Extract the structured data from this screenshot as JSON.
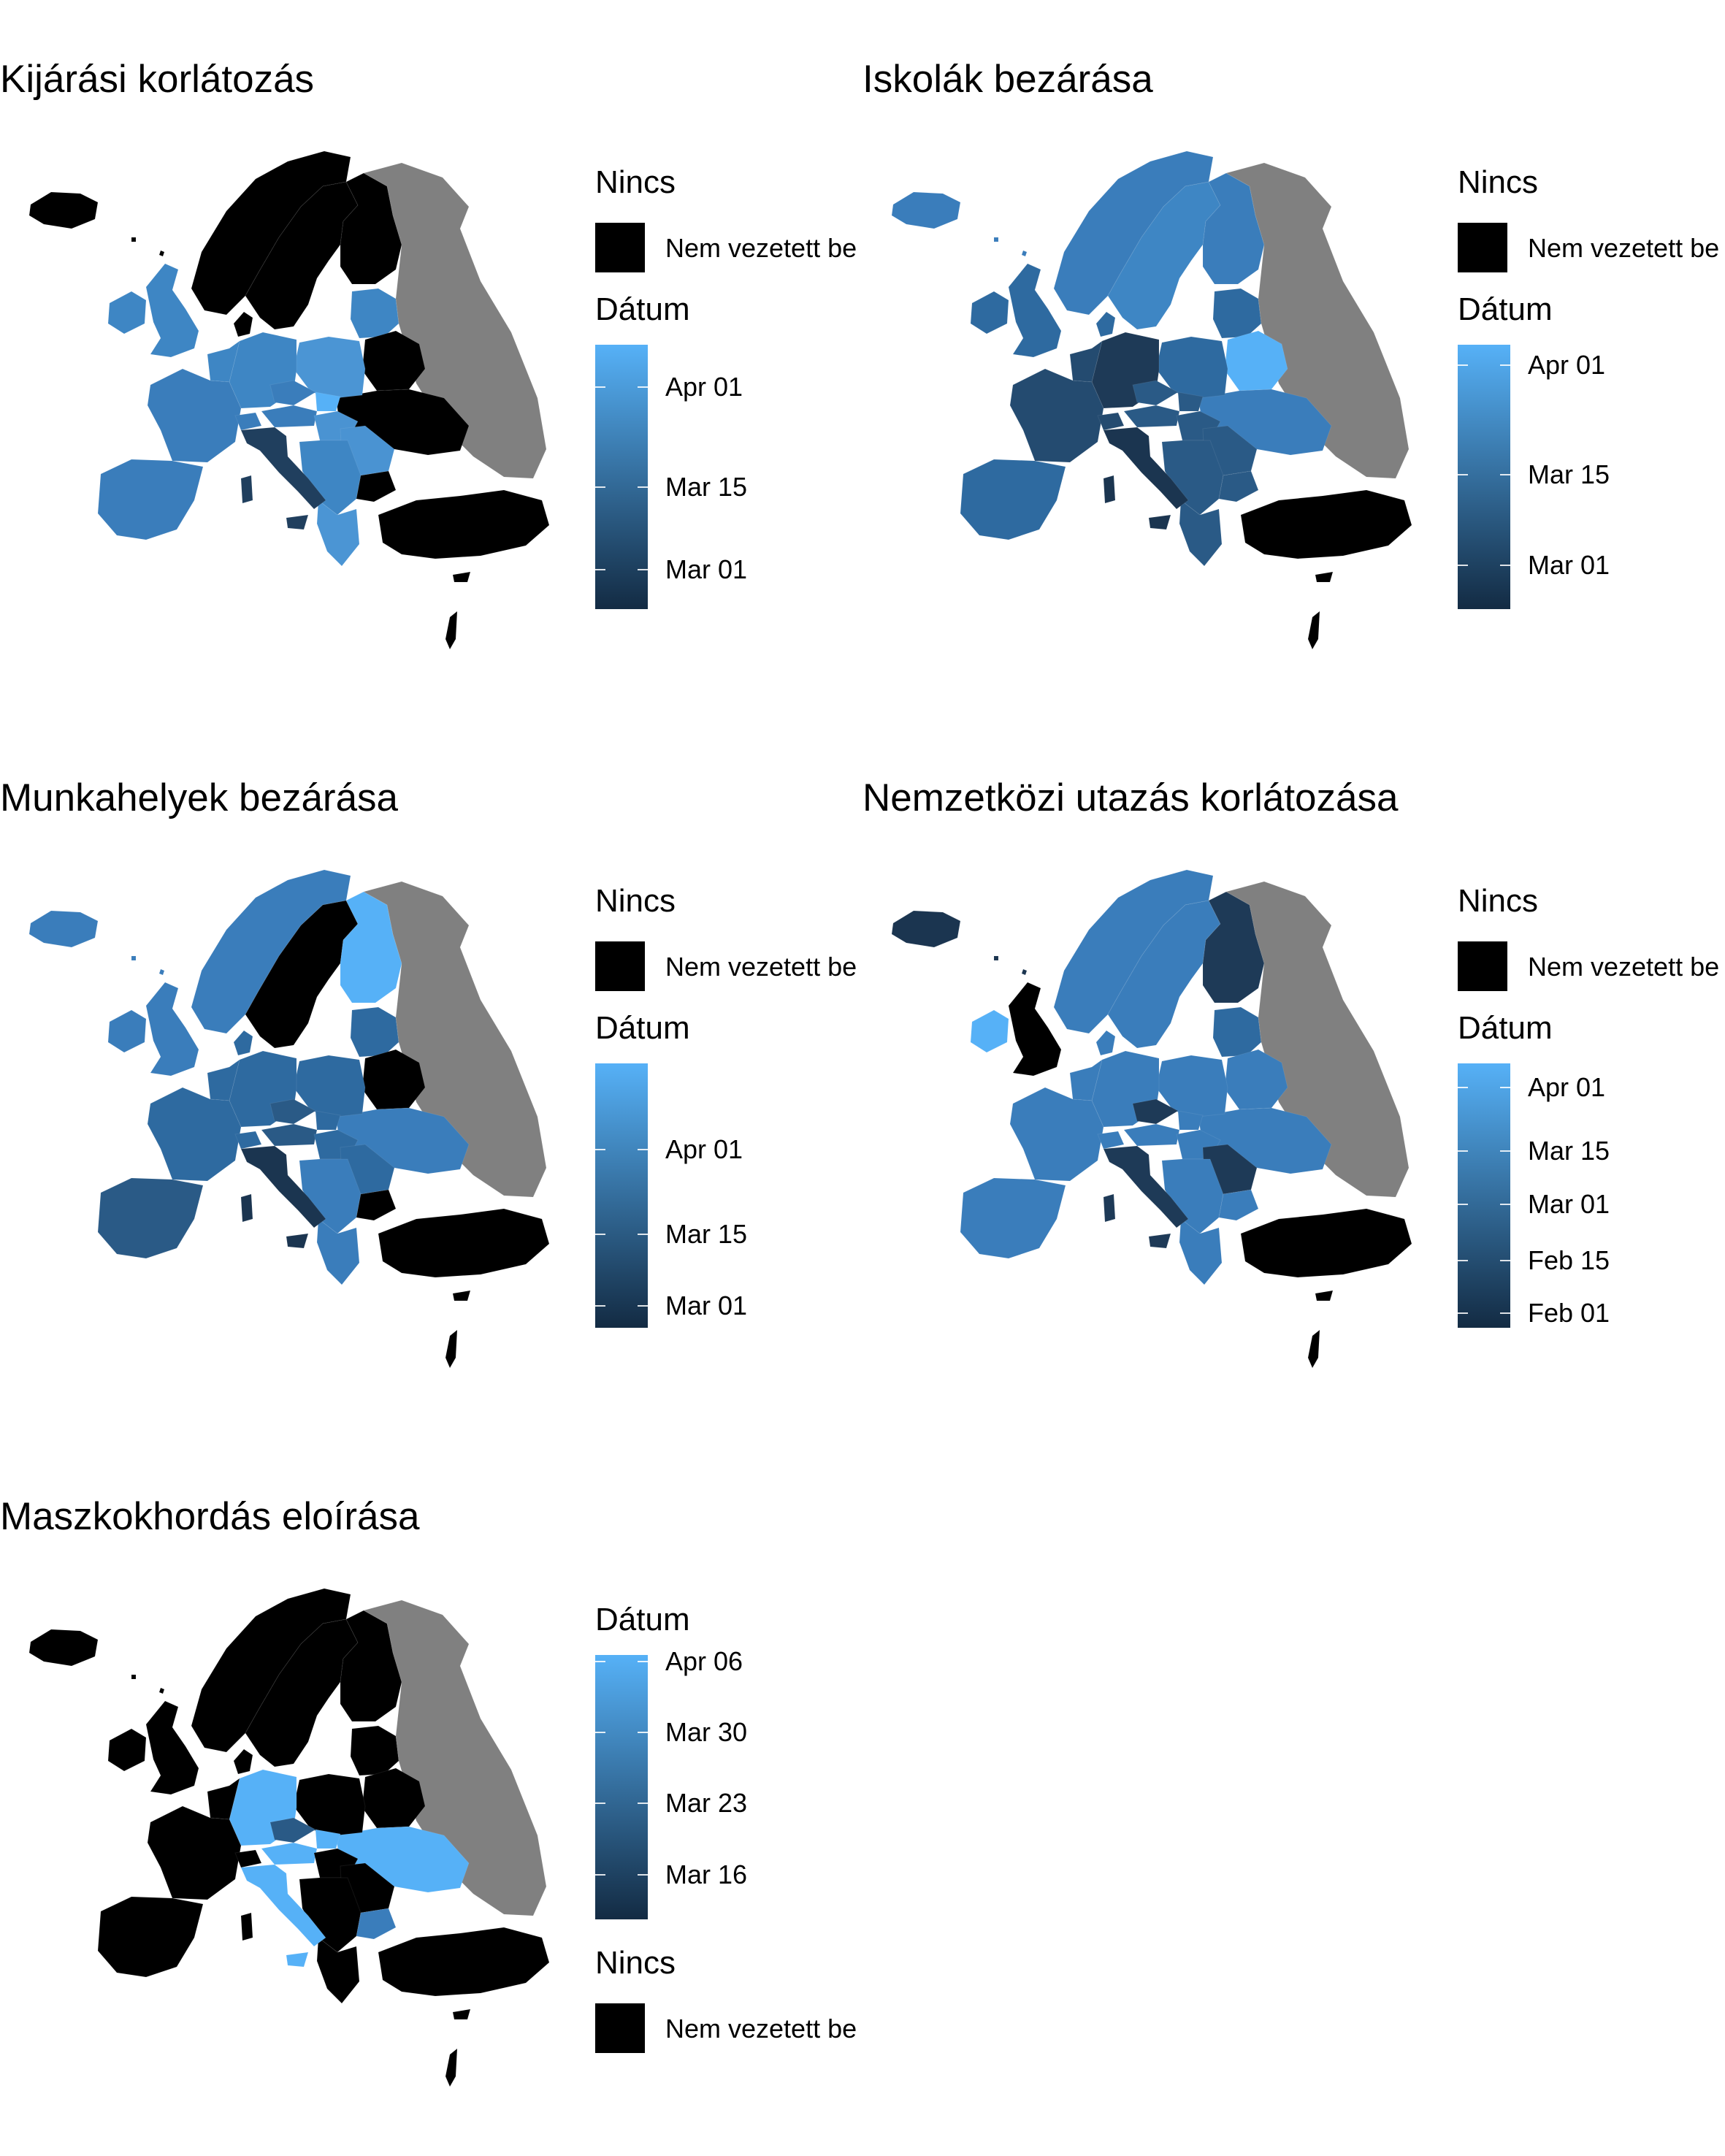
{
  "colors": {
    "scale_low": "#132B43",
    "scale_high": "#56B1F7",
    "not_introduced": "#000000",
    "no_data": "#808080"
  },
  "panels": [
    {
      "title": "Kijárási korlátozás",
      "nincs": {
        "title": "Nincs",
        "label": "Nem vezetett be"
      },
      "datum": {
        "title": "Dátum",
        "breaks": [
          "Apr 01",
          "Mar 15",
          "Mar 01"
        ]
      }
    },
    {
      "title": "Iskolák bezárása",
      "nincs": {
        "title": "Nincs",
        "label": "Nem vezetett be"
      },
      "datum": {
        "title": "Dátum",
        "breaks": [
          "Apr 01",
          "Mar 15",
          "Mar 01"
        ]
      }
    },
    {
      "title": "Munkahelyek bezárása",
      "nincs": {
        "title": "Nincs",
        "label": "Nem vezetett be"
      },
      "datum": {
        "title": "Dátum",
        "breaks": [
          "Apr 01",
          "Mar 15",
          "Mar 01"
        ]
      }
    },
    {
      "title": "Nemzetközi utazás korlátozása",
      "nincs": {
        "title": "Nincs",
        "label": "Nem vezetett be"
      },
      "datum": {
        "title": "Dátum",
        "breaks": [
          "Apr 01",
          "Mar 15",
          "Mar 01",
          "Feb 15",
          "Feb 01"
        ]
      }
    },
    {
      "title": "Maszkokhordás eloírása",
      "nincs": {
        "title": "Nincs",
        "label": "Nem vezetett be"
      },
      "datum": {
        "title": "Dátum",
        "breaks": [
          "Apr 06",
          "Mar 30",
          "Mar 23",
          "Mar 16"
        ]
      }
    }
  ]
}
